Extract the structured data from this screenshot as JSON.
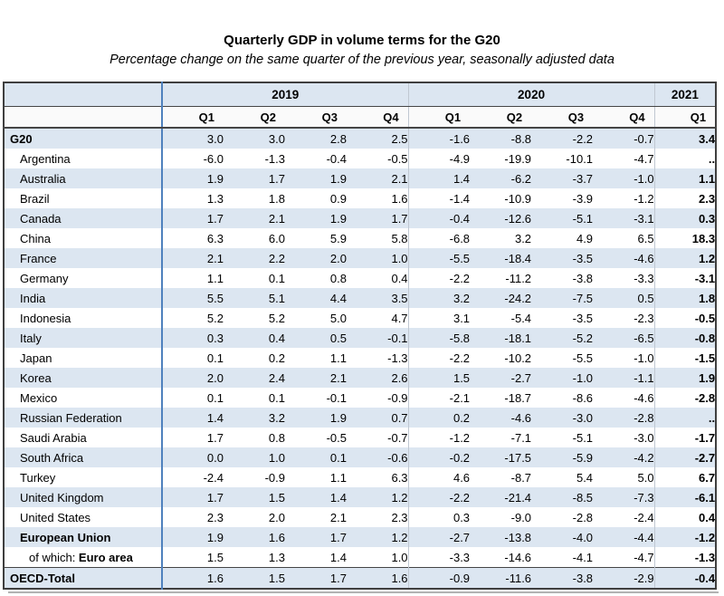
{
  "page": {
    "title": "Quarterly GDP in volume terms for the G20",
    "subtitle": "Percentage change on the same quarter of the previous year, seasonally adjusted data"
  },
  "colors": {
    "stripe_blue": "#dce6f1",
    "column_separator_blue": "#4f81bd",
    "year_separator_gray": "#c0c8d2",
    "border_dark": "#3f3f3f",
    "shadow_gray": "#b3b3b3"
  },
  "table": {
    "missing_value": "..",
    "year_groups": [
      {
        "label": "2019",
        "colspan": 4
      },
      {
        "label": "2020",
        "colspan": 4
      },
      {
        "label": "2021",
        "colspan": 1
      }
    ],
    "quarter_headers": [
      "Q1",
      "Q2",
      "Q3",
      "Q4",
      "Q1",
      "Q2",
      "Q3",
      "Q4",
      "Q1"
    ],
    "rows": [
      {
        "label": "G20",
        "style": "total",
        "values": [
          "3.0",
          "3.0",
          "2.8",
          "2.5",
          "-1.6",
          "-8.8",
          "-2.2",
          "-0.7",
          "3.4"
        ]
      },
      {
        "label": "Argentina",
        "style": "country",
        "values": [
          "-6.0",
          "-1.3",
          "-0.4",
          "-0.5",
          "-4.9",
          "-19.9",
          "-10.1",
          "-4.7",
          ".."
        ]
      },
      {
        "label": "Australia",
        "style": "country",
        "values": [
          "1.9",
          "1.7",
          "1.9",
          "2.1",
          "1.4",
          "-6.2",
          "-3.7",
          "-1.0",
          "1.1"
        ]
      },
      {
        "label": "Brazil",
        "style": "country",
        "values": [
          "1.3",
          "1.8",
          "0.9",
          "1.6",
          "-1.4",
          "-10.9",
          "-3.9",
          "-1.2",
          "2.3"
        ]
      },
      {
        "label": "Canada",
        "style": "country",
        "values": [
          "1.7",
          "2.1",
          "1.9",
          "1.7",
          "-0.4",
          "-12.6",
          "-5.1",
          "-3.1",
          "0.3"
        ]
      },
      {
        "label": "China",
        "style": "country",
        "values": [
          "6.3",
          "6.0",
          "5.9",
          "5.8",
          "-6.8",
          "3.2",
          "4.9",
          "6.5",
          "18.3"
        ]
      },
      {
        "label": "France",
        "style": "country",
        "values": [
          "2.1",
          "2.2",
          "2.0",
          "1.0",
          "-5.5",
          "-18.4",
          "-3.5",
          "-4.6",
          "1.2"
        ]
      },
      {
        "label": "Germany",
        "style": "country",
        "values": [
          "1.1",
          "0.1",
          "0.8",
          "0.4",
          "-2.2",
          "-11.2",
          "-3.8",
          "-3.3",
          "-3.1"
        ]
      },
      {
        "label": "India",
        "style": "country",
        "values": [
          "5.5",
          "5.1",
          "4.4",
          "3.5",
          "3.2",
          "-24.2",
          "-7.5",
          "0.5",
          "1.8"
        ]
      },
      {
        "label": "Indonesia",
        "style": "country",
        "values": [
          "5.2",
          "5.2",
          "5.0",
          "4.7",
          "3.1",
          "-5.4",
          "-3.5",
          "-2.3",
          "-0.5"
        ]
      },
      {
        "label": "Italy",
        "style": "country",
        "values": [
          "0.3",
          "0.4",
          "0.5",
          "-0.1",
          "-5.8",
          "-18.1",
          "-5.2",
          "-6.5",
          "-0.8"
        ]
      },
      {
        "label": "Japan",
        "style": "country",
        "values": [
          "0.1",
          "0.2",
          "1.1",
          "-1.3",
          "-2.2",
          "-10.2",
          "-5.5",
          "-1.0",
          "-1.5"
        ]
      },
      {
        "label": "Korea",
        "style": "country",
        "values": [
          "2.0",
          "2.4",
          "2.1",
          "2.6",
          "1.5",
          "-2.7",
          "-1.0",
          "-1.1",
          "1.9"
        ]
      },
      {
        "label": "Mexico",
        "style": "country",
        "values": [
          "0.1",
          "0.1",
          "-0.1",
          "-0.9",
          "-2.1",
          "-18.7",
          "-8.6",
          "-4.6",
          "-2.8"
        ]
      },
      {
        "label": "Russian Federation",
        "style": "country",
        "values": [
          "1.4",
          "3.2",
          "1.9",
          "0.7",
          "0.2",
          "-4.6",
          "-3.0",
          "-2.8",
          ".."
        ]
      },
      {
        "label": "Saudi Arabia",
        "style": "country",
        "values": [
          "1.7",
          "0.8",
          "-0.5",
          "-0.7",
          "-1.2",
          "-7.1",
          "-5.1",
          "-3.0",
          "-1.7"
        ]
      },
      {
        "label": "South Africa",
        "style": "country",
        "values": [
          "0.0",
          "1.0",
          "0.1",
          "-0.6",
          "-0.2",
          "-17.5",
          "-5.9",
          "-4.2",
          "-2.7"
        ]
      },
      {
        "label": "Turkey",
        "style": "country",
        "values": [
          "-2.4",
          "-0.9",
          "1.1",
          "6.3",
          "4.6",
          "-8.7",
          "5.4",
          "5.0",
          "6.7"
        ]
      },
      {
        "label": "United Kingdom",
        "style": "country",
        "values": [
          "1.7",
          "1.5",
          "1.4",
          "1.2",
          "-2.2",
          "-21.4",
          "-8.5",
          "-7.3",
          "-6.1"
        ]
      },
      {
        "label": "United States",
        "style": "country",
        "values": [
          "2.3",
          "2.0",
          "2.1",
          "2.3",
          "0.3",
          "-9.0",
          "-2.8",
          "-2.4",
          "0.4"
        ]
      },
      {
        "label": "European Union",
        "style": "country-bold",
        "values": [
          "1.9",
          "1.6",
          "1.7",
          "1.2",
          "-2.7",
          "-13.8",
          "-4.0",
          "-4.4",
          "-1.2"
        ]
      },
      {
        "label": "of which: Euro area",
        "style": "ofwhich",
        "label_prefix": "of which: ",
        "label_main": "Euro area",
        "values": [
          "1.5",
          "1.3",
          "1.4",
          "1.0",
          "-3.3",
          "-14.6",
          "-4.1",
          "-4.7",
          "-1.3"
        ]
      },
      {
        "label": "OECD-Total",
        "style": "total",
        "separator_above": true,
        "values": [
          "1.6",
          "1.5",
          "1.7",
          "1.6",
          "-0.9",
          "-11.6",
          "-3.8",
          "-2.9",
          "-0.4"
        ]
      }
    ]
  }
}
